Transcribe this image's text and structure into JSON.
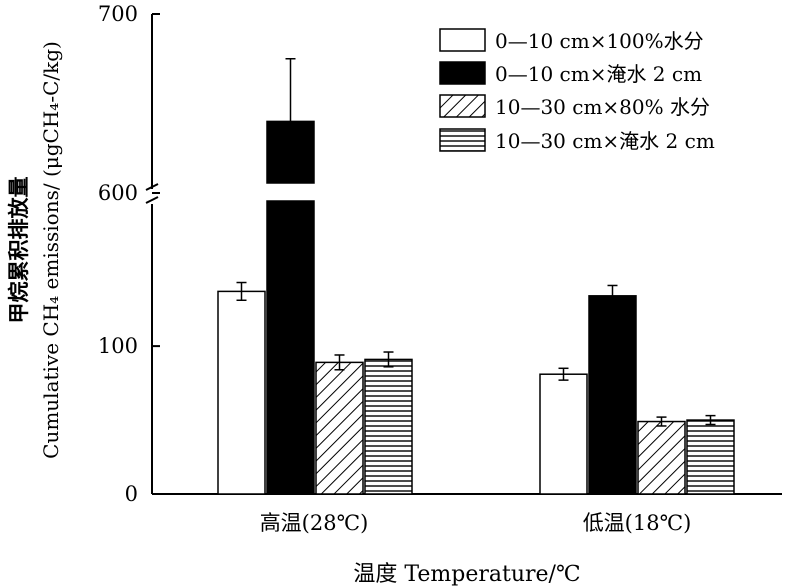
{
  "chart_data": {
    "type": "bar",
    "xlabel": "温度 Temperature/℃",
    "ylabel_cn": "甲烷累积排放量",
    "ylabel_en": "Cumulative CH₄ emissions/ (μgCH₄-C/kg)",
    "categories": [
      "高温(28℃)",
      "低温(18℃)"
    ],
    "y_break": true,
    "y_ticks": [
      {
        "label": "0",
        "value": 0
      },
      {
        "label": "100",
        "value": 100
      },
      {
        "label": "600",
        "value": 600
      },
      {
        "label": "700",
        "value": 700
      }
    ],
    "legend_position": "top-right",
    "series": [
      {
        "name": "0—10 cm×100%水分",
        "pattern": "white",
        "values": [
          137,
          81
        ],
        "errors": [
          6,
          4
        ]
      },
      {
        "name": "0—10 cm×淹水 2 cm",
        "pattern": "black",
        "values": [
          640,
          134
        ],
        "errors": [
          35,
          7
        ]
      },
      {
        "name": "10—30 cm×80% 水分",
        "pattern": "hatch",
        "values": [
          89,
          49
        ],
        "errors": [
          5,
          3
        ]
      },
      {
        "name": "10—30 cm×淹水 2 cm",
        "pattern": "hlines",
        "values": [
          91,
          50
        ],
        "errors": [
          5,
          3
        ]
      }
    ]
  }
}
